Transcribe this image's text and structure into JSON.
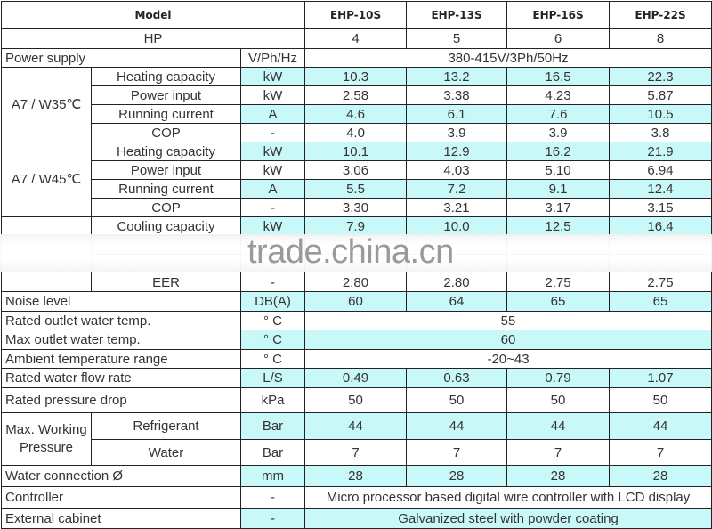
{
  "header": {
    "model_label": "Model",
    "models": [
      "EHP-10S",
      "EHP-13S",
      "EHP-16S",
      "EHP-22S"
    ]
  },
  "hp": {
    "label": "HP",
    "values": [
      "4",
      "5",
      "6",
      "8"
    ]
  },
  "rows": [
    {
      "label": "Power supply",
      "unit": "V/Ph/Hz",
      "span_value": "380-415V/3Ph/50Hz",
      "highlight": false
    },
    {
      "group": "A7 / W35℃",
      "rows": [
        {
          "label": "Heating capacity",
          "unit": "kW",
          "values": [
            "10.3",
            "13.2",
            "16.5",
            "22.3"
          ],
          "highlight": true
        },
        {
          "label": "Power input",
          "unit": "kW",
          "values": [
            "2.58",
            "3.38",
            "4.23",
            "5.87"
          ],
          "highlight": false
        },
        {
          "label": "Running current",
          "unit": "A",
          "values": [
            "4.6",
            "6.1",
            "7.6",
            "10.5"
          ],
          "highlight": true
        },
        {
          "label": "COP",
          "unit": "-",
          "values": [
            "4.0",
            "3.9",
            "3.9",
            "3.8"
          ],
          "highlight": false
        }
      ]
    },
    {
      "group": "A7 / W45℃",
      "rows": [
        {
          "label": "Heating capacity",
          "unit": "kW",
          "values": [
            "10.1",
            "12.9",
            "16.2",
            "21.9"
          ],
          "highlight": true
        },
        {
          "label": "Power input",
          "unit": "kW",
          "values": [
            "3.06",
            "4.03",
            "5.10",
            "6.94"
          ],
          "highlight": false
        },
        {
          "label": "Running current",
          "unit": "A",
          "values": [
            "5.5",
            "7.2",
            "9.1",
            "12.4"
          ],
          "highlight": true
        },
        {
          "label": "COP",
          "unit": "-",
          "values": [
            "3.30",
            "3.21",
            "3.17",
            "3.15"
          ],
          "highlight": false
        }
      ]
    },
    {
      "group": "",
      "rows": [
        {
          "label": "Cooling capacity",
          "unit": "kW",
          "values": [
            "7.9",
            "10.0",
            "12.5",
            "16.4"
          ],
          "highlight": true
        },
        {
          "label": "",
          "unit": "",
          "values": [
            "",
            "",
            "",
            ""
          ],
          "highlight": false
        },
        {
          "label": "",
          "unit": "",
          "values": [
            "",
            "",
            "",
            ""
          ],
          "highlight": false
        },
        {
          "label": "EER",
          "unit": "-",
          "values": [
            "2.80",
            "2.80",
            "2.75",
            "2.75"
          ],
          "highlight": false
        }
      ]
    },
    {
      "label": "Noise level",
      "unit": "DB(A)",
      "values": [
        "60",
        "64",
        "65",
        "65"
      ],
      "highlight": true
    },
    {
      "label": "Rated outlet water temp.",
      "unit": "° C",
      "span_value": "55",
      "highlight": false
    },
    {
      "label": "Max outlet water temp.",
      "unit": "° C",
      "span_value": "60",
      "highlight": true
    },
    {
      "label": "Ambient temperature range",
      "unit": "° C",
      "span_value": "-20~43",
      "highlight": false
    },
    {
      "label": "Rated water flow rate",
      "unit": "L/S",
      "values": [
        "0.49",
        "0.63",
        "0.79",
        "1.07"
      ],
      "highlight": true
    },
    {
      "label": "Rated pressure drop",
      "unit": "kPa",
      "values": [
        "50",
        "50",
        "50",
        "50"
      ],
      "highlight": false
    },
    {
      "group": "Max. Working Pressure",
      "rows": [
        {
          "label": "Refrigerant",
          "unit": "Bar",
          "values": [
            "44",
            "44",
            "44",
            "44"
          ],
          "highlight": true
        },
        {
          "label": "Water",
          "unit": "Bar",
          "values": [
            "7",
            "7",
            "7",
            "7"
          ],
          "highlight": false
        }
      ]
    },
    {
      "label": "Water connection Ø",
      "unit": "mm",
      "values": [
        "28",
        "28",
        "28",
        "28"
      ],
      "highlight": true
    },
    {
      "label": "Controller",
      "unit": "-",
      "span_value": "Micro processor based digital wire controller with LCD display",
      "highlight": false
    },
    {
      "label": "External cabinet",
      "unit": "-",
      "span_value": "Galvanized steel with powder coating",
      "highlight": true
    }
  ],
  "watermark": "trade.china.cn",
  "colors": {
    "highlight": "#c9f8f8",
    "border": "#222222",
    "text": "#333333"
  }
}
